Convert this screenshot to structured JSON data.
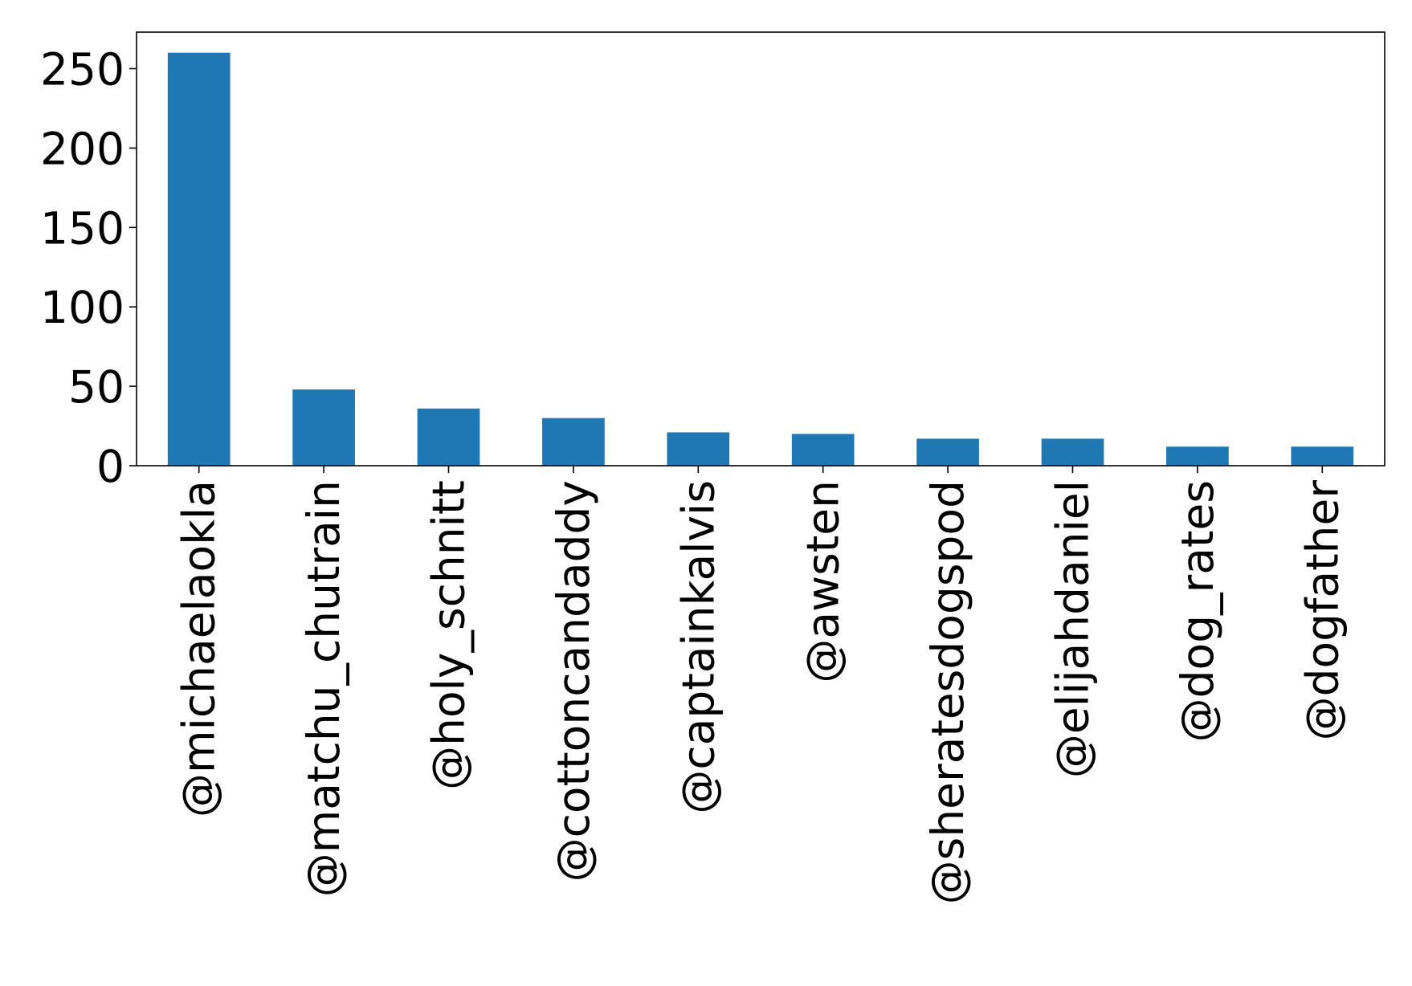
{
  "chart_data": {
    "type": "bar",
    "categories": [
      "@michaelaokla",
      "@matchu_chutrain",
      "@holy_schnitt",
      "@cottoncandaddy",
      "@captainkalvis",
      "@awsten",
      "@sheratesdogspod",
      "@elijahdaniel",
      "@dog_rates",
      "@dogfather"
    ],
    "values": [
      260,
      48,
      36,
      30,
      21,
      20,
      17,
      17,
      12,
      12
    ],
    "ylim": [
      0,
      273
    ],
    "yticks": [
      "0",
      "50",
      "100",
      "150",
      "200",
      "250"
    ],
    "title": "",
    "xlabel": "",
    "ylabel": "",
    "bar_color": "#1f77b4",
    "grid": false,
    "legend": "none"
  }
}
